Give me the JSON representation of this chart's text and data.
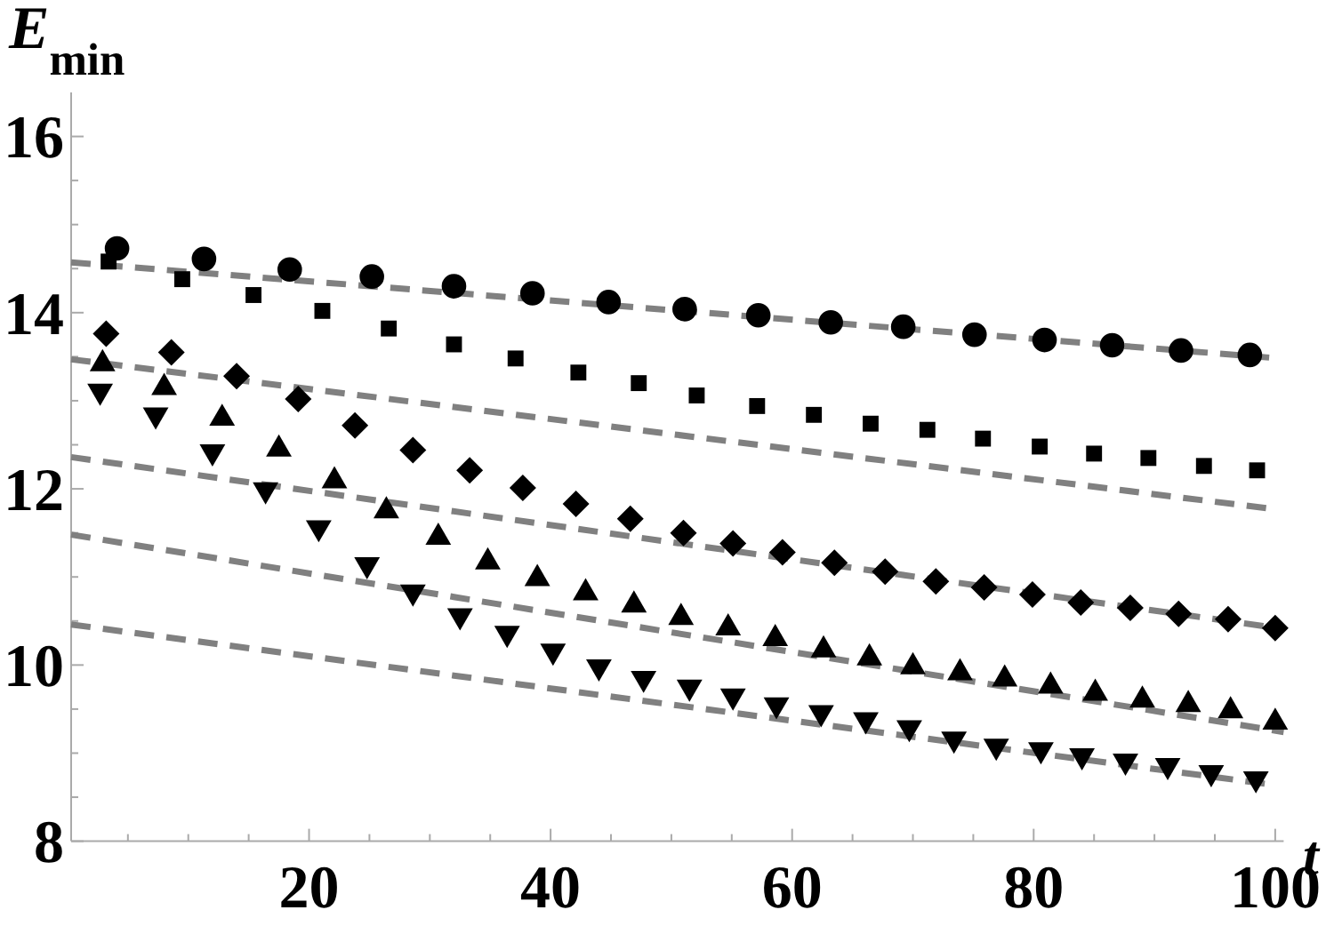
{
  "chart_data": {
    "type": "scatter",
    "xlabel": "t",
    "ylabel": "E$_{min}$",
    "xlim": [
      0.3,
      100.7
    ],
    "ylim": [
      8,
      16.5
    ],
    "xticks": [
      {
        "value": 5,
        "label": null
      },
      {
        "value": 10,
        "label": null
      },
      {
        "value": 15,
        "label": null
      },
      20,
      {
        "value": 25,
        "label": null
      },
      {
        "value": 30,
        "label": null
      },
      {
        "value": 35,
        "label": null
      },
      40,
      {
        "value": 45,
        "label": null
      },
      {
        "value": 50,
        "label": null
      },
      {
        "value": 55,
        "label": null
      },
      60,
      {
        "value": 65,
        "label": null
      },
      {
        "value": 70,
        "label": null
      },
      {
        "value": 75,
        "label": null
      },
      80,
      {
        "value": 85,
        "label": null
      },
      {
        "value": 90,
        "label": null
      },
      {
        "value": 95,
        "label": null
      },
      100
    ],
    "yticks": [
      8,
      {
        "value": 8.5,
        "label": null
      },
      {
        "value": 9,
        "label": null
      },
      {
        "value": 9.5,
        "label": null
      },
      10,
      {
        "value": 10.5,
        "label": null
      },
      {
        "value": 11,
        "label": null
      },
      {
        "value": 11.5,
        "label": null
      },
      12,
      {
        "value": 12.5,
        "label": null
      },
      {
        "value": 13,
        "label": null
      },
      {
        "value": 13.5,
        "label": null
      },
      14,
      {
        "value": 14.5,
        "label": null
      },
      {
        "value": 15,
        "label": null
      },
      {
        "value": 15.5,
        "label": null
      },
      16
    ],
    "grid": false,
    "series": [
      {
        "marker": "circle",
        "color": "#000000",
        "x": [
          4.1,
          11.3,
          18.4,
          25.2,
          32.0,
          38.5,
          44.8,
          51.1,
          57.2,
          63.2,
          69.2,
          75.1,
          80.9,
          86.5,
          92.2,
          97.9
        ],
        "values": [
          14.73,
          14.61,
          14.49,
          14.41,
          14.3,
          14.22,
          14.12,
          14.04,
          13.97,
          13.89,
          13.84,
          13.75,
          13.69,
          13.63,
          13.57,
          13.52
        ]
      },
      {
        "marker": "square",
        "color": "#000000",
        "x": [
          3.4,
          9.5,
          15.4,
          21.1,
          26.6,
          32.0,
          37.1,
          42.3,
          47.3,
          52.1,
          57.1,
          61.8,
          66.5,
          71.2,
          75.8,
          80.5,
          85.0,
          89.5,
          94.1,
          98.5
        ],
        "values": [
          14.58,
          14.38,
          14.2,
          14.02,
          13.82,
          13.64,
          13.48,
          13.32,
          13.2,
          13.06,
          12.94,
          12.84,
          12.74,
          12.67,
          12.57,
          12.48,
          12.4,
          12.35,
          12.26,
          12.21
        ]
      },
      {
        "marker": "diamond",
        "color": "#000000",
        "x": [
          3.2,
          8.6,
          14.0,
          19.1,
          23.8,
          28.6,
          33.3,
          37.7,
          42.1,
          46.6,
          51.0,
          55.1,
          59.2,
          63.5,
          67.7,
          71.9,
          75.9,
          79.9,
          83.9,
          88.0,
          92.0,
          96.1,
          100.0
        ],
        "values": [
          13.76,
          13.55,
          13.28,
          13.02,
          12.72,
          12.44,
          12.21,
          12.01,
          11.83,
          11.66,
          11.5,
          11.38,
          11.28,
          11.16,
          11.06,
          10.95,
          10.88,
          10.8,
          10.71,
          10.65,
          10.58,
          10.52,
          10.42
        ]
      },
      {
        "marker": "triangle",
        "color": "#000000",
        "x": [
          2.9,
          8.0,
          12.8,
          17.5,
          22.1,
          26.4,
          30.7,
          34.8,
          38.9,
          42.9,
          46.9,
          50.8,
          54.7,
          58.6,
          62.6,
          66.4,
          70.0,
          73.9,
          77.6,
          81.4,
          85.1,
          89.0,
          92.8,
          96.3,
          100.0
        ],
        "values": [
          13.42,
          13.15,
          12.8,
          12.45,
          12.09,
          11.75,
          11.45,
          11.17,
          10.98,
          10.82,
          10.68,
          10.54,
          10.42,
          10.3,
          10.17,
          10.08,
          9.98,
          9.91,
          9.84,
          9.76,
          9.68,
          9.6,
          9.55,
          9.48,
          9.35
        ]
      },
      {
        "marker": "triangle-down",
        "color": "#000000",
        "x": [
          2.7,
          7.3,
          12.0,
          16.4,
          20.8,
          24.8,
          28.6,
          32.5,
          36.4,
          40.2,
          44.0,
          47.7,
          51.5,
          55.1,
          58.7,
          62.4,
          66.1,
          69.7,
          73.4,
          76.9,
          80.6,
          84.0,
          87.6,
          91.1,
          94.7,
          98.4
        ],
        "values": [
          13.11,
          12.84,
          12.42,
          11.99,
          11.56,
          11.14,
          10.83,
          10.56,
          10.36,
          10.16,
          9.98,
          9.85,
          9.75,
          9.65,
          9.55,
          9.46,
          9.38,
          9.29,
          9.16,
          9.08,
          9.04,
          8.97,
          8.91,
          8.86,
          8.78,
          8.71
        ]
      },
      {
        "type": "line",
        "marker": "none",
        "line_style": "dashed",
        "color": "#808080",
        "x": [
          0.3,
          99.5
        ],
        "values": [
          14.57,
          13.49
        ]
      },
      {
        "type": "line",
        "marker": "none",
        "line_style": "dashed",
        "color": "#808080",
        "x": [
          0.3,
          99.3
        ],
        "values": [
          13.47,
          11.78
        ]
      },
      {
        "type": "line",
        "marker": "none",
        "line_style": "dashed",
        "color": "#808080",
        "x": [
          0.3,
          100.7
        ],
        "values": [
          12.36,
          10.41
        ]
      },
      {
        "type": "line",
        "marker": "none",
        "line_style": "dashed",
        "color": "#808080",
        "x": [
          0.3,
          100.7
        ],
        "values": [
          11.48,
          9.24
        ]
      },
      {
        "type": "line",
        "marker": "none",
        "line_style": "dashed",
        "color": "#808080",
        "x": [
          0.3,
          99.3
        ],
        "values": [
          10.46,
          8.65
        ]
      }
    ]
  }
}
